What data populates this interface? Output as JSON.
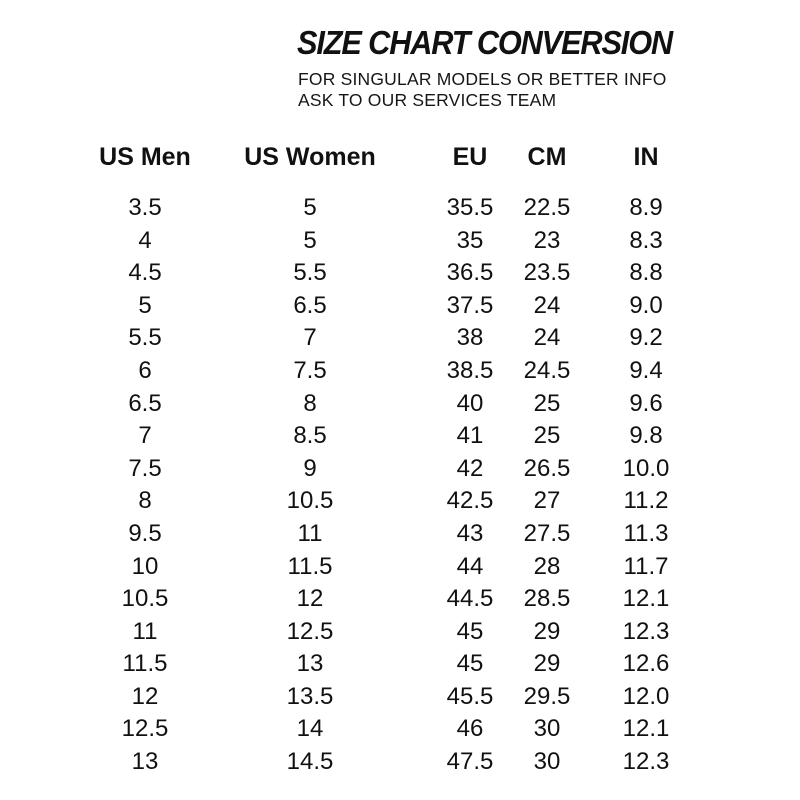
{
  "header": {
    "title": "SIZE CHART CONVERSION",
    "subtitle_lines": [
      "FOR SINGULAR MODELS OR BETTER INFO",
      "ASK TO OUR SERVICES TEAM"
    ]
  },
  "chart_data": {
    "type": "table",
    "title": "SIZE CHART CONVERSION",
    "columns": [
      "US Men",
      "US Women",
      "EU",
      "CM",
      "IN"
    ],
    "rows": [
      [
        "3.5",
        "5",
        "35.5",
        "22.5",
        "8.9"
      ],
      [
        "4",
        "5",
        "35",
        "23",
        "8.3"
      ],
      [
        "4.5",
        "5.5",
        "36.5",
        "23.5",
        "8.8"
      ],
      [
        "5",
        "6.5",
        "37.5",
        "24",
        "9.0"
      ],
      [
        "5.5",
        "7",
        "38",
        "24",
        "9.2"
      ],
      [
        "6",
        "7.5",
        "38.5",
        "24.5",
        "9.4"
      ],
      [
        "6.5",
        "8",
        "40",
        "25",
        "9.6"
      ],
      [
        "7",
        "8.5",
        "41",
        "25",
        "9.8"
      ],
      [
        "7.5",
        "9",
        "42",
        "26.5",
        "10.0"
      ],
      [
        "8",
        "10.5",
        "42.5",
        "27",
        "11.2"
      ],
      [
        "9.5",
        "11",
        "43",
        "27.5",
        "11.3"
      ],
      [
        "10",
        "11.5",
        "44",
        "28",
        "11.7"
      ],
      [
        "10.5",
        "12",
        "44.5",
        "28.5",
        "12.1"
      ],
      [
        "11",
        "12.5",
        "45",
        "29",
        "12.3"
      ],
      [
        "11.5",
        "13",
        "45",
        "29",
        "12.6"
      ],
      [
        "12",
        "13.5",
        "45.5",
        "29.5",
        "12.0"
      ],
      [
        "12.5",
        "14",
        "46",
        "30",
        "12.1"
      ],
      [
        "13",
        "14.5",
        "47.5",
        "30",
        "12.3"
      ]
    ]
  },
  "colors": {
    "text": "#111111",
    "background": "#ffffff"
  }
}
